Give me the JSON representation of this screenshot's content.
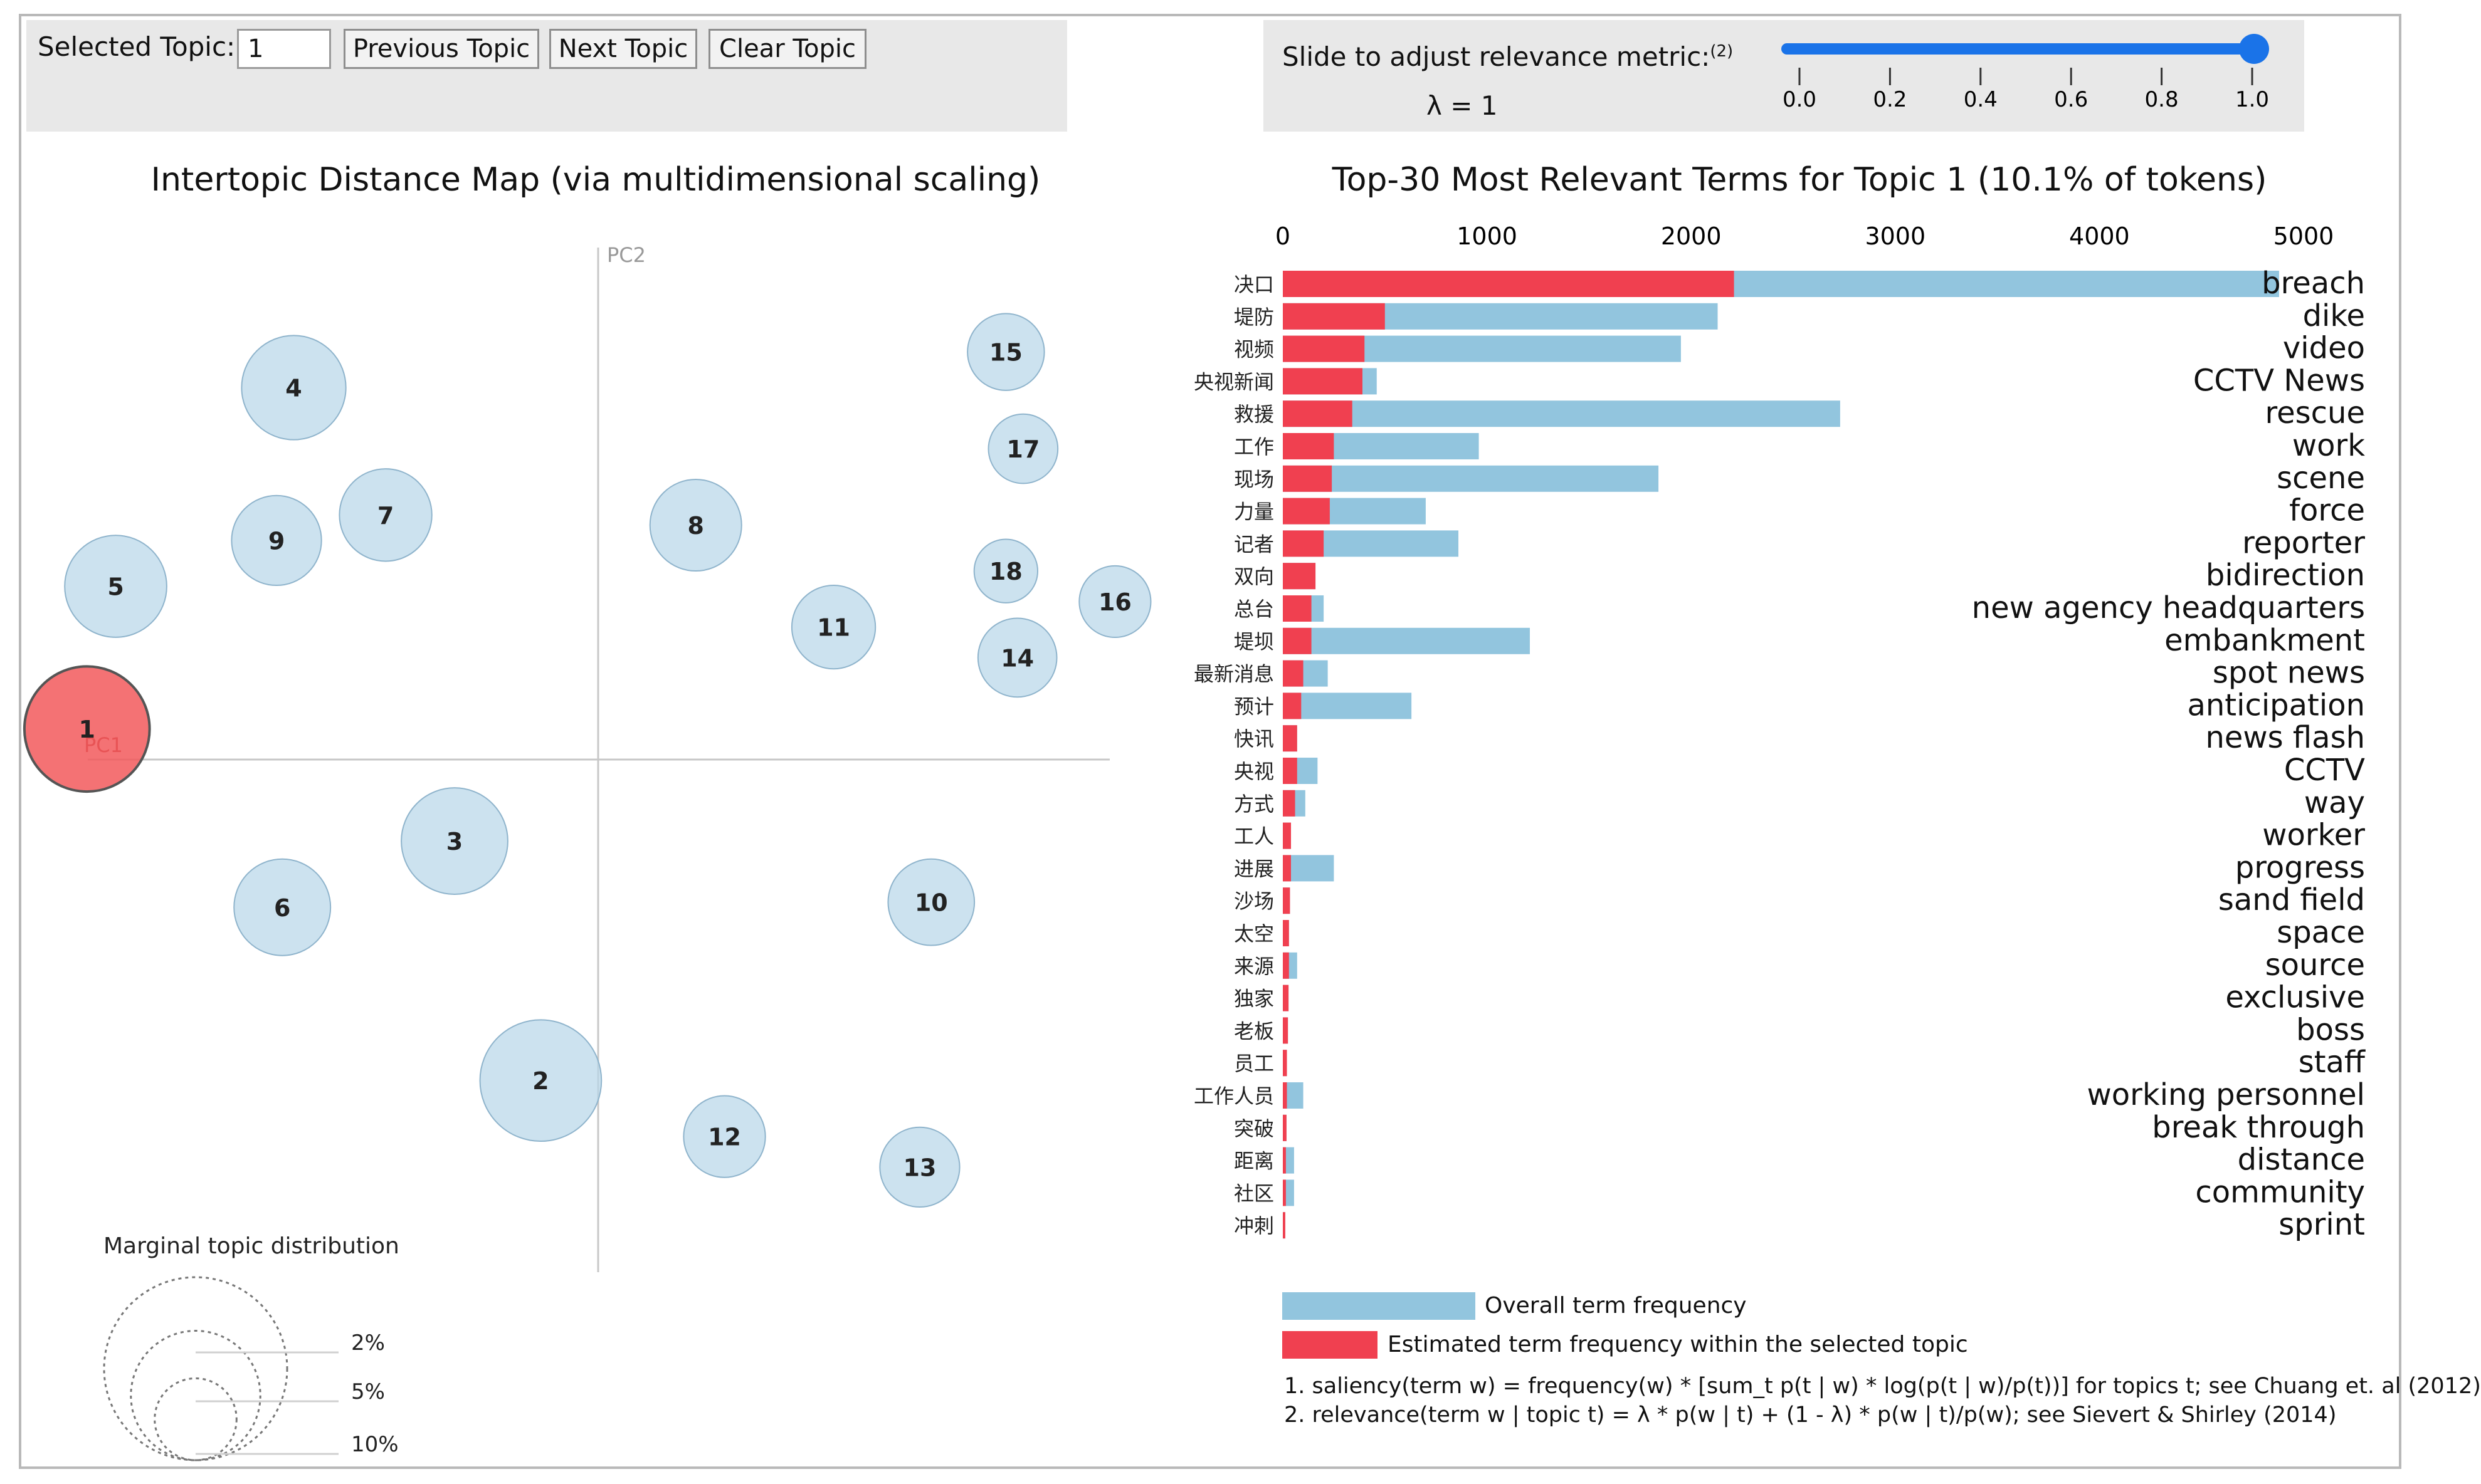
{
  "controls": {
    "selected_topic_label": "Selected Topic:",
    "selected_topic_value": "1",
    "prev_label": "Previous Topic",
    "next_label": "Next Topic",
    "clear_label": "Clear Topic",
    "slider_label": "Slide to adjust relevance metric:",
    "slider_footnote": "(2)",
    "lambda_text": "λ = 1",
    "lambda_value": 1.0,
    "slider_ticks": [
      "0.0",
      "0.2",
      "0.4",
      "0.6",
      "0.8",
      "1.0"
    ]
  },
  "left_title": "Intertopic Distance Map (via multidimensional scaling)",
  "right_title": "Top-30 Most Relevant Terms for Topic 1 (10.1% of tokens)",
  "colors": {
    "bubble": "#b6d6e8",
    "bubble_stroke": "#8fb4cc",
    "selected": "#f2595c",
    "overall": "#92c5de",
    "topic": "#f04050",
    "panel": "#e8e8e8"
  },
  "chart_data": [
    {
      "type": "scatter",
      "title": "Intertopic Distance Map (via multidimensional scaling)",
      "xlabel": "PC1",
      "ylabel": "PC2",
      "selected_topic": 1,
      "xlim": [
        -1,
        1
      ],
      "ylim": [
        -1,
        1
      ],
      "points": [
        {
          "label": "1",
          "x": -0.89,
          "y": 0.06,
          "size_pct": 10.1
        },
        {
          "label": "2",
          "x": -0.1,
          "y": -0.63,
          "size_pct": 9.5
        },
        {
          "label": "3",
          "x": -0.25,
          "y": -0.16,
          "size_pct": 7.3
        },
        {
          "label": "4",
          "x": -0.53,
          "y": 0.73,
          "size_pct": 7.0
        },
        {
          "label": "5",
          "x": -0.84,
          "y": 0.34,
          "size_pct": 6.7
        },
        {
          "label": "6",
          "x": -0.55,
          "y": -0.29,
          "size_pct": 6.0
        },
        {
          "label": "7",
          "x": -0.37,
          "y": 0.48,
          "size_pct": 5.5
        },
        {
          "label": "8",
          "x": 0.17,
          "y": 0.46,
          "size_pct": 5.4
        },
        {
          "label": "9",
          "x": -0.56,
          "y": 0.43,
          "size_pct": 5.2
        },
        {
          "label": "10",
          "x": 0.58,
          "y": -0.28,
          "size_pct": 4.8
        },
        {
          "label": "11",
          "x": 0.41,
          "y": 0.26,
          "size_pct": 4.5
        },
        {
          "label": "12",
          "x": 0.22,
          "y": -0.74,
          "size_pct": 4.3
        },
        {
          "label": "13",
          "x": 0.56,
          "y": -0.8,
          "size_pct": 4.1
        },
        {
          "label": "14",
          "x": 0.73,
          "y": 0.2,
          "size_pct": 4.0
        },
        {
          "label": "15",
          "x": 0.71,
          "y": 0.8,
          "size_pct": 3.8
        },
        {
          "label": "16",
          "x": 0.9,
          "y": 0.31,
          "size_pct": 3.3
        },
        {
          "label": "17",
          "x": 0.74,
          "y": 0.61,
          "size_pct": 3.1
        },
        {
          "label": "18",
          "x": 0.71,
          "y": 0.37,
          "size_pct": 2.6
        }
      ],
      "marginal": {
        "title": "Marginal topic distribution",
        "labels": [
          "2%",
          "5%",
          "10%"
        ],
        "values": [
          2,
          5,
          10
        ]
      }
    },
    {
      "type": "bar",
      "orientation": "horizontal",
      "title": "Top-30 Most Relevant Terms for Topic 1 (10.1% of tokens)",
      "xlim": [
        0,
        5000
      ],
      "ticks": [
        "0",
        "1000",
        "2000",
        "3000",
        "4000",
        "5000"
      ],
      "categories": [
        "决口",
        "堤防",
        "视频",
        "央视新闻",
        "救援",
        "工作",
        "现场",
        "力量",
        "记者",
        "双向",
        "总台",
        "堤坝",
        "最新消息",
        "预计",
        "快讯",
        "央视",
        "方式",
        "工人",
        "进展",
        "沙场",
        "太空",
        "来源",
        "独家",
        "老板",
        "员工",
        "工作人员",
        "突破",
        "距离",
        "社区",
        "冲刺"
      ],
      "translations": [
        "breach",
        "dike",
        "video",
        "CCTV News",
        "rescue",
        "work",
        "scene",
        "force",
        "reporter",
        "bidirection",
        "new agency headquarters",
        "embankment",
        "spot news",
        "anticipation",
        "news flash",
        "CCTV",
        "way",
        "worker",
        "progress",
        "sand field",
        "space",
        "source",
        "exclusive",
        "boss",
        "staff",
        "working personnel",
        "break through",
        "distance",
        "community",
        "sprint"
      ],
      "series": [
        {
          "name": "Overall term frequency",
          "values": [
            4880,
            2130,
            1950,
            460,
            2730,
            960,
            1840,
            700,
            860,
            160,
            200,
            1210,
            220,
            630,
            70,
            170,
            110,
            40,
            250,
            35,
            30,
            70,
            28,
            25,
            20,
            100,
            18,
            55,
            55,
            12
          ]
        },
        {
          "name": "Estimated term frequency within the selected topic",
          "values": [
            2210,
            500,
            400,
            390,
            340,
            250,
            240,
            230,
            200,
            160,
            140,
            140,
            100,
            90,
            70,
            70,
            60,
            40,
            40,
            35,
            30,
            30,
            28,
            25,
            20,
            20,
            18,
            15,
            15,
            12
          ]
        }
      ]
    }
  ],
  "legend": {
    "overall": "Overall term frequency",
    "topic": "Estimated term frequency within the selected topic"
  },
  "footnotes": [
    "1. saliency(term w) = frequency(w) * [sum_t p(t | w) * log(p(t | w)/p(t))] for topics t; see Chuang et. al (2012)",
    "2. relevance(term w | topic t) = λ * p(w | t) + (1 - λ) * p(w | t)/p(w); see Sievert & Shirley (2014)"
  ]
}
